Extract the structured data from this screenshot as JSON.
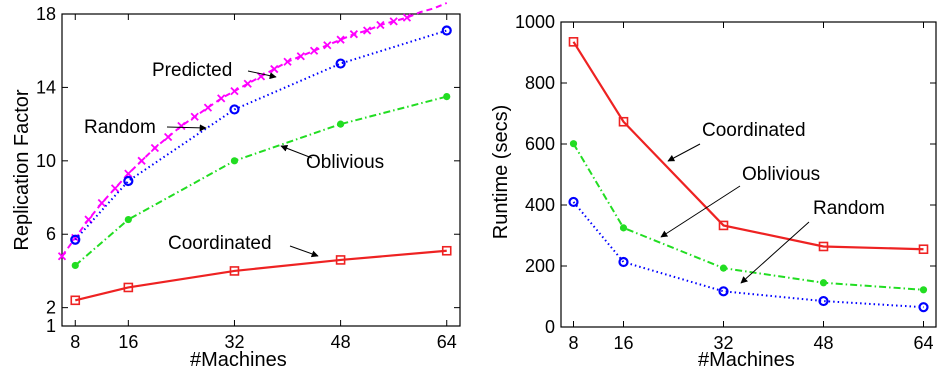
{
  "chart_data": [
    {
      "type": "line",
      "xlabel": "#Machines",
      "ylabel": "Replication Factor",
      "xlim": [
        6,
        66
      ],
      "ylim": [
        1,
        18
      ],
      "xticks": [
        8,
        16,
        32,
        48,
        64
      ],
      "yticks": [
        1,
        2,
        6,
        10,
        14,
        18
      ],
      "grid": false,
      "series": [
        {
          "name": "Predicted",
          "color": "#ff00ff",
          "dash": "dashed",
          "marker": "x",
          "x": [
            6,
            8,
            10,
            12,
            14,
            16,
            18,
            20,
            22,
            24,
            26,
            28,
            30,
            32,
            34,
            36,
            38,
            40,
            42,
            44,
            46,
            48,
            50,
            52,
            54,
            56,
            58,
            60,
            62,
            64
          ],
          "y": [
            4.8,
            5.8,
            6.8,
            7.7,
            8.5,
            9.3,
            10.0,
            10.7,
            11.3,
            11.9,
            12.4,
            12.9,
            13.4,
            13.8,
            14.2,
            14.6,
            15.0,
            15.4,
            15.7,
            16.0,
            16.3,
            16.6,
            16.9,
            17.1,
            17.4,
            17.6,
            17.8,
            18.1,
            18.3,
            18.6
          ]
        },
        {
          "name": "Random",
          "color": "#0000ff",
          "dash": "dotted",
          "marker": "o",
          "x": [
            8,
            16,
            32,
            48,
            64
          ],
          "y": [
            5.7,
            8.9,
            12.8,
            15.3,
            17.1
          ]
        },
        {
          "name": "Oblivious",
          "color": "#22dd22",
          "dash": "dashdot",
          "marker": "dot",
          "x": [
            8,
            16,
            32,
            48,
            64
          ],
          "y": [
            4.3,
            6.8,
            10.0,
            12.0,
            13.5
          ]
        },
        {
          "name": "Coordinated",
          "color": "#ee2222",
          "dash": "solid",
          "marker": "square",
          "x": [
            8,
            16,
            32,
            48,
            64
          ],
          "y": [
            2.4,
            3.1,
            4.0,
            4.6,
            5.1
          ]
        }
      ],
      "annotations": [
        {
          "text": "Predicted",
          "series": "Predicted"
        },
        {
          "text": "Random",
          "series": "Random"
        },
        {
          "text": "Oblivious",
          "series": "Oblivious"
        },
        {
          "text": "Coordinated",
          "series": "Coordinated"
        }
      ]
    },
    {
      "type": "line",
      "xlabel": "#Machines",
      "ylabel": "Runtime (secs)",
      "xlim": [
        6,
        66
      ],
      "ylim": [
        0,
        1000
      ],
      "xticks": [
        8,
        16,
        32,
        48,
        64
      ],
      "yticks": [
        0,
        200,
        400,
        600,
        800,
        1000
      ],
      "grid": false,
      "series": [
        {
          "name": "Coordinated",
          "color": "#ee2222",
          "dash": "solid",
          "marker": "square",
          "x": [
            8,
            16,
            32,
            48,
            64
          ],
          "y": [
            935,
            673,
            333,
            264,
            255
          ]
        },
        {
          "name": "Oblivious",
          "color": "#22dd22",
          "dash": "dashdot",
          "marker": "dot",
          "x": [
            8,
            16,
            32,
            48,
            64
          ],
          "y": [
            601,
            325,
            193,
            145,
            122
          ]
        },
        {
          "name": "Random",
          "color": "#0000ff",
          "dash": "dotted",
          "marker": "o",
          "x": [
            8,
            16,
            32,
            48,
            64
          ],
          "y": [
            410,
            213,
            117,
            85,
            65
          ]
        }
      ],
      "annotations": [
        {
          "text": "Coordinated",
          "series": "Coordinated"
        },
        {
          "text": "Oblivious",
          "series": "Oblivious"
        },
        {
          "text": "Random",
          "series": "Random"
        }
      ]
    }
  ]
}
